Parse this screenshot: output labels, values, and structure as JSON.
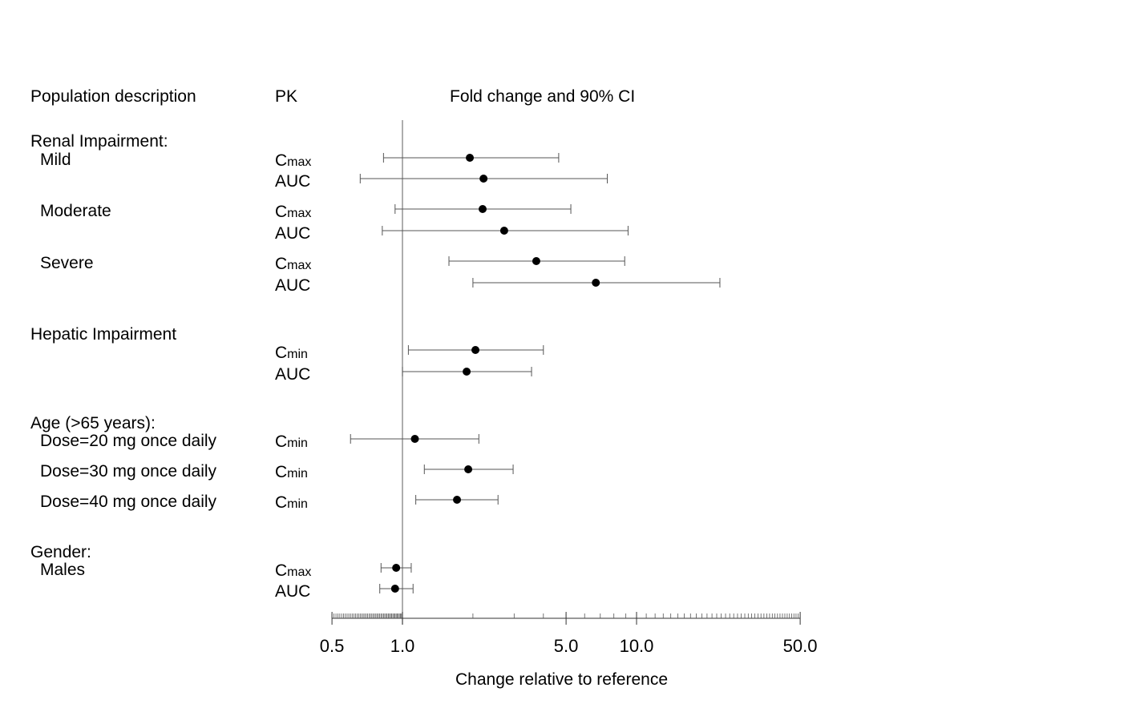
{
  "chart_data": {
    "type": "forest",
    "headers": {
      "population": "Population description",
      "pk": "PK",
      "ci": "Fold change and 90% CI"
    },
    "xlabel": "Change relative to reference",
    "x_scale": "log",
    "xlim": [
      0.5,
      50
    ],
    "x_ticks": [
      "0.5",
      "1.0",
      "5.0",
      "10.0",
      " 50.0"
    ],
    "x_tick_values": [
      0.5,
      1.0,
      5.0,
      10.0,
      50.0
    ],
    "reference_line": 1.0,
    "group_labels": [
      "Renal Impairment:",
      "Hepatic Impairment",
      "Age (>65 years):",
      "Gender:"
    ],
    "rows": [
      {
        "subgroup": "Mild",
        "pk_main": "C",
        "pk_sub": "max",
        "estimate": 1.94,
        "lower": 0.83,
        "upper": 4.65
      },
      {
        "subgroup": "",
        "pk_main": "AUC",
        "pk_sub": "",
        "estimate": 2.22,
        "lower": 0.66,
        "upper": 7.5
      },
      {
        "subgroup": "Moderate",
        "pk_main": "C",
        "pk_sub": "max",
        "estimate": 2.2,
        "lower": 0.93,
        "upper": 5.24
      },
      {
        "subgroup": "",
        "pk_main": "AUC",
        "pk_sub": "",
        "estimate": 2.72,
        "lower": 0.82,
        "upper": 9.2
      },
      {
        "subgroup": "Severe",
        "pk_main": "C",
        "pk_sub": "max",
        "estimate": 3.73,
        "lower": 1.58,
        "upper": 8.9
      },
      {
        "subgroup": "",
        "pk_main": "AUC",
        "pk_sub": "",
        "estimate": 6.7,
        "lower": 2.0,
        "upper": 22.7
      },
      {
        "subgroup": "",
        "pk_main": "C",
        "pk_sub": "min",
        "estimate": 2.05,
        "lower": 1.06,
        "upper": 4.0
      },
      {
        "subgroup": "",
        "pk_main": "AUC",
        "pk_sub": "",
        "estimate": 1.88,
        "lower": 1.0,
        "upper": 3.56
      },
      {
        "subgroup": "Dose=20 mg once daily",
        "pk_main": "C",
        "pk_sub": "min",
        "estimate": 1.13,
        "lower": 0.6,
        "upper": 2.12
      },
      {
        "subgroup": "Dose=30 mg once daily",
        "pk_main": "C",
        "pk_sub": "min",
        "estimate": 1.91,
        "lower": 1.24,
        "upper": 2.97
      },
      {
        "subgroup": "Dose=40 mg once daily",
        "pk_main": "C",
        "pk_sub": "min",
        "estimate": 1.71,
        "lower": 1.14,
        "upper": 2.56
      },
      {
        "subgroup": "Males",
        "pk_main": "C",
        "pk_sub": "max",
        "estimate": 0.94,
        "lower": 0.81,
        "upper": 1.09
      },
      {
        "subgroup": "",
        "pk_main": "AUC",
        "pk_sub": "",
        "estimate": 0.93,
        "lower": 0.8,
        "upper": 1.11
      }
    ]
  }
}
